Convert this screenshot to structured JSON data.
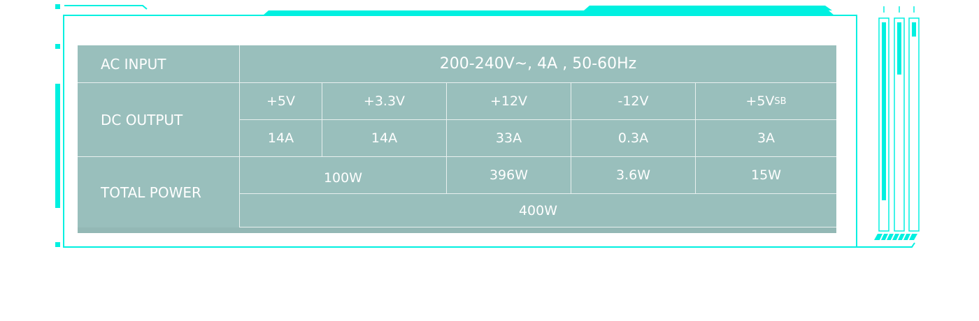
{
  "colors": {
    "accent": "#00f0e0",
    "table_bg": "#99bfbc",
    "text": "#ffffff"
  },
  "indicator_levels": [
    0.75,
    0.22,
    0.06
  ],
  "spec": {
    "ac_input": {
      "label": "AC INPUT",
      "value": "200-240V~, 4A , 50-60Hz"
    },
    "dc_output": {
      "label": "DC OUTPUT",
      "rails": [
        {
          "voltage": "+5V",
          "current": "14A"
        },
        {
          "voltage": "+3.3V",
          "current": "14A"
        },
        {
          "voltage": "+12V",
          "current": "33A"
        },
        {
          "voltage": "-12V",
          "current": "0.3A"
        },
        {
          "voltage": "+5V",
          "voltage_sub": "SB",
          "current": "3A"
        }
      ]
    },
    "total_power": {
      "label": "TOTAL POWER",
      "values": [
        "100W",
        "396W",
        "3.6W",
        "15W"
      ],
      "total": "400W"
    }
  }
}
